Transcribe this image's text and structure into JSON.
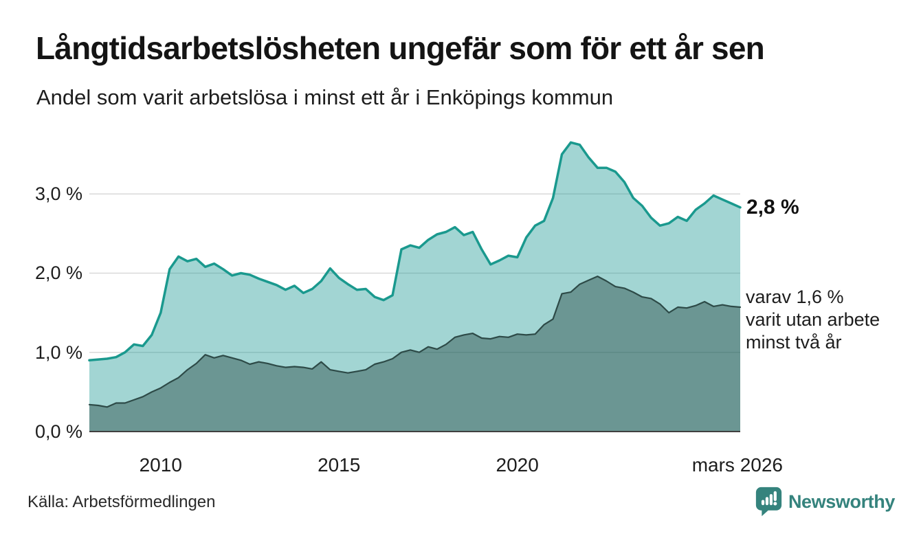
{
  "header": {
    "title": "Långtidsarbetslösheten ungefär som för ett år sen",
    "subtitle": "Andel som varit arbetslösa i minst ett år i Enköpings kommun"
  },
  "chart_data": {
    "type": "area",
    "title": "Långtidsarbetslösheten ungefär som för ett år sen",
    "subtitle": "Andel som varit arbetslösa i minst ett år i Enköpings kommun",
    "x_start": 2008.0,
    "x_step": 0.25,
    "x_end": 2026.25,
    "ylim": [
      0,
      3.8
    ],
    "grid": true,
    "grid_color": "#d9d9d9",
    "axis_color": "#404040",
    "yticks": [
      {
        "value": 0,
        "label": "0,0 %"
      },
      {
        "value": 1,
        "label": "1,0 %"
      },
      {
        "value": 2,
        "label": "2,0 %"
      },
      {
        "value": 3,
        "label": "3,0 %"
      }
    ],
    "xticks": [
      {
        "x": 2010,
        "label": "2010"
      },
      {
        "x": 2015,
        "label": "2015"
      },
      {
        "x": 2020,
        "label": "2020"
      },
      {
        "x": 2026.17,
        "label": "mars 2026"
      }
    ],
    "series": [
      {
        "name": "arbetslösa minst ett år",
        "end_label": "2,8 %",
        "end_value": 2.8,
        "line_color": "#1a998e",
        "line_width": 3.5,
        "fill_color": "rgba(23,150,144,0.40)",
        "values": [
          0.9,
          0.91,
          0.92,
          0.94,
          1.0,
          1.1,
          1.08,
          1.22,
          1.5,
          2.05,
          2.21,
          2.15,
          2.18,
          2.08,
          2.12,
          2.05,
          1.97,
          2.0,
          1.98,
          1.93,
          1.89,
          1.85,
          1.79,
          1.84,
          1.75,
          1.8,
          1.9,
          2.06,
          1.94,
          1.86,
          1.79,
          1.8,
          1.7,
          1.66,
          1.72,
          2.3,
          2.35,
          2.32,
          2.42,
          2.49,
          2.52,
          2.58,
          2.48,
          2.52,
          2.3,
          2.11,
          2.16,
          2.22,
          2.2,
          2.45,
          2.6,
          2.66,
          2.95,
          3.5,
          3.65,
          3.62,
          3.46,
          3.33,
          3.33,
          3.28,
          3.15,
          2.95,
          2.85,
          2.7,
          2.6,
          2.63,
          2.71,
          2.66,
          2.8,
          2.88,
          2.98,
          2.93,
          2.88,
          2.83
        ]
      },
      {
        "name": "varav arbetslösa minst två år",
        "end_label": "varav 1,6 % varit utan arbete minst två år",
        "end_value": 1.6,
        "line_color": "#2d4a47",
        "line_width": 2.2,
        "fill_color": "rgba(30,64,60,0.42)",
        "values": [
          0.34,
          0.33,
          0.31,
          0.36,
          0.36,
          0.4,
          0.44,
          0.5,
          0.55,
          0.62,
          0.68,
          0.78,
          0.86,
          0.97,
          0.93,
          0.96,
          0.93,
          0.9,
          0.85,
          0.88,
          0.86,
          0.83,
          0.81,
          0.82,
          0.81,
          0.79,
          0.88,
          0.78,
          0.76,
          0.74,
          0.76,
          0.78,
          0.85,
          0.88,
          0.92,
          1.0,
          1.03,
          1.0,
          1.07,
          1.04,
          1.1,
          1.19,
          1.22,
          1.24,
          1.18,
          1.17,
          1.2,
          1.19,
          1.23,
          1.22,
          1.23,
          1.35,
          1.42,
          1.74,
          1.76,
          1.86,
          1.91,
          1.96,
          1.9,
          1.83,
          1.81,
          1.76,
          1.7,
          1.68,
          1.61,
          1.5,
          1.57,
          1.56,
          1.59,
          1.64,
          1.58,
          1.6,
          1.58,
          1.57
        ]
      }
    ],
    "annotations": {
      "end_total": "2,8 %",
      "end_sub_lines": [
        "varav 1,6 %",
        "varit utan arbete",
        "minst två år"
      ]
    }
  },
  "footer": {
    "source": "Källa: Arbetsförmedlingen",
    "brand": "Newsworthy",
    "brand_color": "#35837d"
  }
}
